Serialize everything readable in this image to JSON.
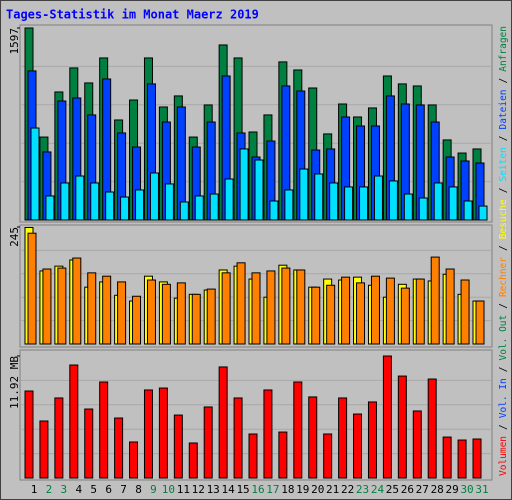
{
  "title": "Tages-Statistik im Monat Maerz 2019",
  "legend_separator": "/",
  "chart_data": [
    {
      "type": "bar",
      "ylim": [
        0,
        1597
      ],
      "yticks": [
        1597
      ],
      "series": [
        {
          "name": "Anfragen",
          "color": "#008040",
          "values": [
            1597,
            690,
            1065,
            1265,
            1140,
            1348,
            832,
            998,
            1348,
            940,
            1032,
            690,
            957,
            1456,
            1348,
            732,
            874,
            1315,
            1248,
            1098,
            716,
            965,
            857,
            932,
            1198,
            1132,
            1115,
            957,
            666,
            557,
            591
          ]
        },
        {
          "name": "Dateien",
          "color": "#0040ff",
          "values": [
            1240,
            566,
            990,
            1015,
            874,
            1173,
            724,
            607,
            1132,
            815,
            940,
            607,
            815,
            1198,
            724,
            524,
            657,
            1115,
            1073,
            582,
            591,
            857,
            782,
            782,
            1032,
            965,
            957,
            815,
            524,
            491,
            474
          ]
        },
        {
          "name": "Seiten",
          "color": "#00e0ff",
          "values": [
            765,
            200,
            308,
            366,
            308,
            233,
            191,
            250,
            391,
            300,
            150,
            200,
            216,
            341,
            591,
            499,
            158,
            250,
            424,
            383,
            308,
            275,
            275,
            366,
            325,
            216,
            183,
            308,
            275,
            158,
            116
          ]
        }
      ]
    },
    {
      "type": "bar",
      "ylim": [
        0,
        245
      ],
      "yticks": [
        245
      ],
      "series": [
        {
          "name": "Besuche",
          "color": "#ffff00",
          "values": [
            244,
            153,
            163,
            176,
            119,
            130,
            102,
            90,
            142,
            130,
            96,
            104,
            113,
            155,
            163,
            136,
            98,
            165,
            155,
            119,
            136,
            134,
            140,
            123,
            98,
            125,
            136,
            132,
            146,
            104,
            90
          ]
        },
        {
          "name": "Rechner",
          "color": "#ff8000",
          "values": [
            232,
            157,
            159,
            180,
            149,
            142,
            130,
            100,
            134,
            125,
            128,
            104,
            115,
            149,
            170,
            149,
            153,
            159,
            155,
            119,
            123,
            140,
            128,
            142,
            138,
            117,
            136,
            182,
            157,
            134,
            90
          ]
        }
      ]
    },
    {
      "type": "bar",
      "categories": [
        "1",
        "2",
        "3",
        "4",
        "5",
        "6",
        "7",
        "8",
        "9",
        "10",
        "11",
        "12",
        "13",
        "14",
        "15",
        "16",
        "17",
        "18",
        "19",
        "20",
        "21",
        "22",
        "23",
        "24",
        "25",
        "26",
        "27",
        "28",
        "29",
        "30",
        "31"
      ],
      "category_colors": [
        "#000000",
        "#008040",
        "#008040",
        "#000000",
        "#000000",
        "#000000",
        "#000000",
        "#000000",
        "#008040",
        "#008040",
        "#000000",
        "#000000",
        "#000000",
        "#000000",
        "#000000",
        "#008040",
        "#008040",
        "#000000",
        "#000000",
        "#000000",
        "#000000",
        "#000000",
        "#008040",
        "#008040",
        "#000000",
        "#000000",
        "#000000",
        "#000000",
        "#000000",
        "#008040",
        "#008040"
      ],
      "ylim": [
        0,
        11.92
      ],
      "yticks": [
        {
          "value": 11.92,
          "label": "11.92 MB"
        }
      ],
      "series": [
        {
          "name": "Volumen",
          "color": "#ff0000",
          "values": [
            8.5,
            5.57,
            7.82,
            11.04,
            6.74,
            9.38,
            5.86,
            3.52,
            8.6,
            8.79,
            6.15,
            3.42,
            6.94,
            10.85,
            7.82,
            4.3,
            8.6,
            4.49,
            9.38,
            7.92,
            4.3,
            7.82,
            6.25,
            7.43,
            11.92,
            9.96,
            6.55,
            9.67,
            4.0,
            3.71,
            3.81
          ]
        },
        {
          "name": "Vol. In",
          "color": "#0040ff"
        },
        {
          "name": "Vol. Out",
          "color": "#008040"
        }
      ]
    }
  ]
}
